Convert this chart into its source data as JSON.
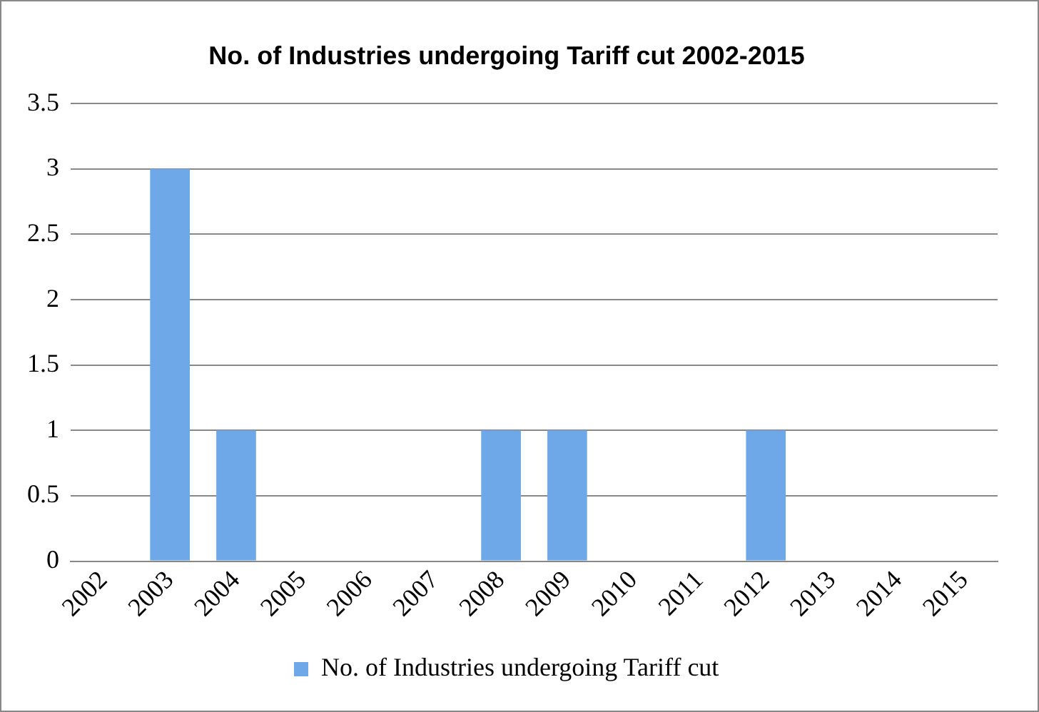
{
  "chart_data": {
    "type": "bar",
    "title": "No. of Industries undergoing Tariff cut 2002-2015",
    "categories": [
      "2002",
      "2003",
      "2004",
      "2005",
      "2006",
      "2007",
      "2008",
      "2009",
      "2010",
      "2011",
      "2012",
      "2013",
      "2014",
      "2015"
    ],
    "series": [
      {
        "name": "No. of Industries undergoing Tariff cut",
        "color": "#6fa8e8",
        "values": [
          0,
          3,
          1,
          0,
          0,
          0,
          1,
          1,
          0,
          0,
          1,
          0,
          0,
          0
        ]
      }
    ],
    "ylim": [
      0,
      3.5
    ],
    "yticks": [
      0,
      0.5,
      1,
      1.5,
      2,
      2.5,
      3,
      3.5
    ],
    "grid": "y",
    "legend": "bottom"
  }
}
